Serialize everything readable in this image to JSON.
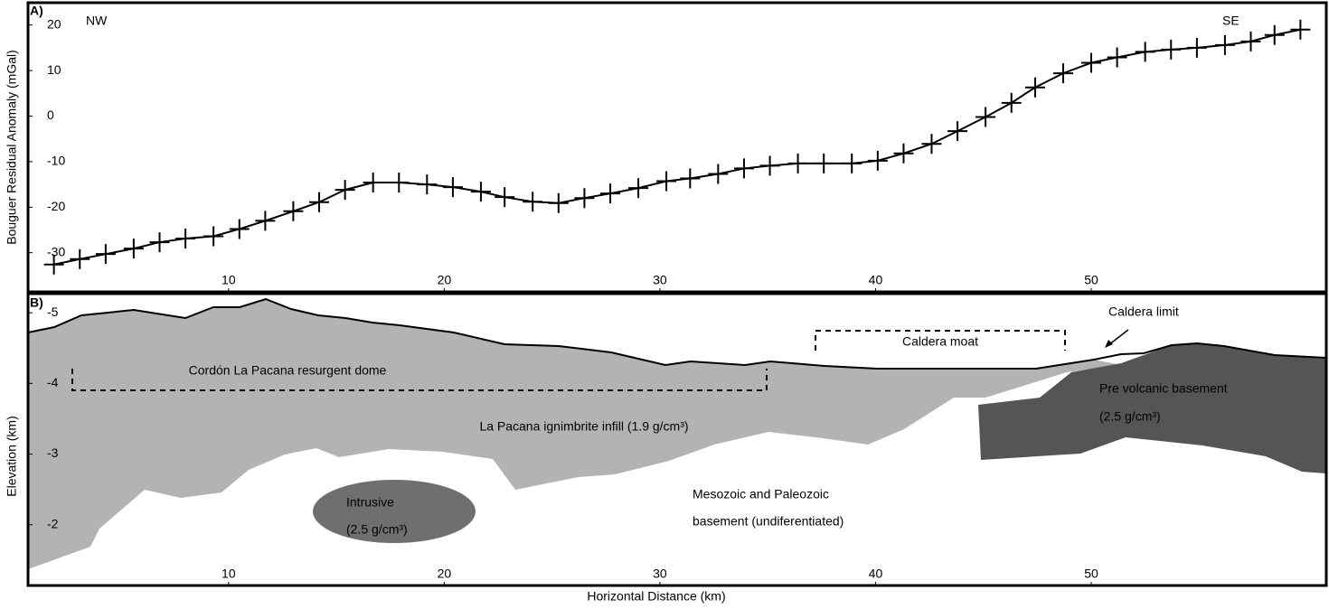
{
  "chart_data": [
    {
      "type": "line",
      "panel_label": "A)",
      "y_label": "Bouguer Residual Anomaly (mGal)",
      "annotations": [
        "NW",
        "SE"
      ],
      "x": [
        1.9,
        3.1,
        4.3,
        5.6,
        6.8,
        8.0,
        9.3,
        10.5,
        11.7,
        13.0,
        14.2,
        15.4,
        16.7,
        17.9,
        19.2,
        20.4,
        21.7,
        22.8,
        24.1,
        25.3,
        26.5,
        27.7,
        29.0,
        30.3,
        31.4,
        32.7,
        33.9,
        35.1,
        36.4,
        37.6,
        38.9,
        40.1,
        41.3,
        42.6,
        43.8,
        45.1,
        46.3,
        47.4,
        48.7,
        50.0,
        51.2,
        52.5,
        53.7,
        54.9,
        56.2,
        57.4,
        58.5,
        59.7
      ],
      "series": [
        {
          "color": "#000000",
          "marker": "+",
          "values": [
            -32.6,
            -31.4,
            -30.3,
            -29.1,
            -27.7,
            -26.9,
            -26.4,
            -24.8,
            -23.0,
            -20.9,
            -18.9,
            -16.2,
            -14.6,
            -14.6,
            -15.0,
            -15.6,
            -16.6,
            -17.8,
            -18.8,
            -19.1,
            -18.0,
            -17.0,
            -15.8,
            -14.3,
            -13.7,
            -12.7,
            -11.5,
            -10.9,
            -10.4,
            -10.4,
            -10.4,
            -9.8,
            -8.2,
            -6.1,
            -3.3,
            -0.2,
            2.9,
            6.3,
            9.4,
            11.7,
            12.9,
            14.1,
            14.6,
            15.0,
            15.6,
            16.4,
            17.8,
            19.0
          ]
        }
      ],
      "xlim": [
        0.7,
        60.9
      ],
      "ylim": [
        -38.6,
        24.9
      ],
      "xticks": [
        10,
        20,
        30,
        40,
        50
      ],
      "yticks": [
        -30,
        -20,
        -10,
        0,
        10,
        20
      ]
    },
    {
      "type": "section",
      "panel_label": "B)",
      "y_label": "Elevation (km)",
      "x_label": "Horizontal Distance (km)",
      "annotations": [
        "Caldera limit",
        "Caldera moat",
        "Cordón La Pacana resurgent dome",
        "La Pacana ignimbrite infill (1.9 g/cm³)",
        "Pre volcanic basement",
        "(2.5 g/cm³)",
        "Intrusive",
        "(2.5 g/cm³)",
        "Mesozoic and Paleozoic",
        "basement (undiferentiated)"
      ],
      "xlim": [
        0.7,
        60.9
      ],
      "ylim": [
        -1.14,
        -5.27
      ],
      "xticks": [
        10,
        20,
        30,
        40,
        50
      ],
      "yticks": [
        -5,
        -4,
        -3,
        -2
      ]
    }
  ]
}
